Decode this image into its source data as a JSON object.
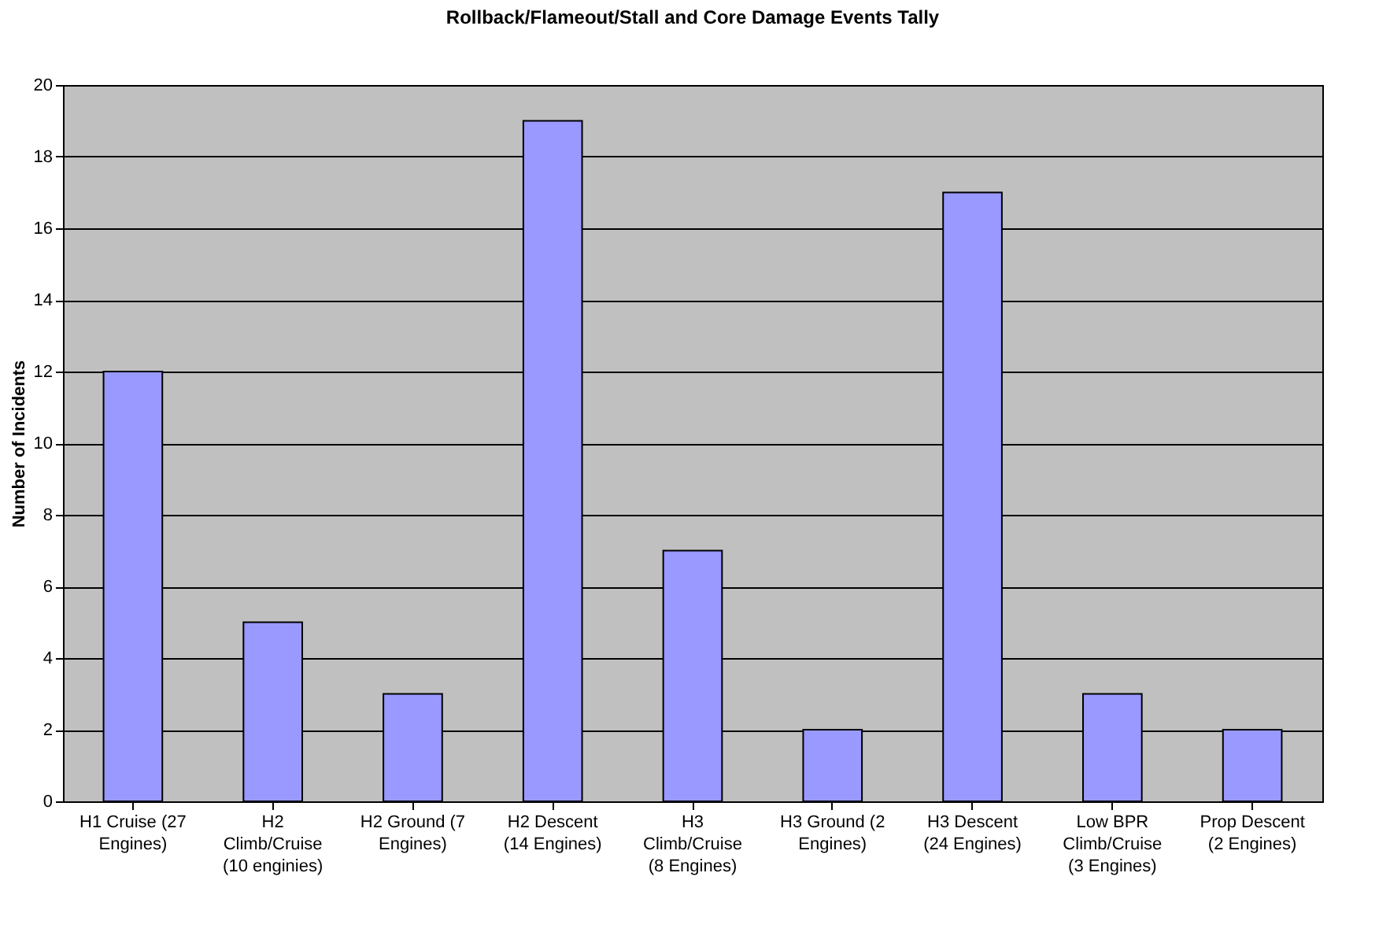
{
  "chart_data": {
    "type": "bar",
    "title": "Rollback/Flameout/Stall and Core Damage Events Tally",
    "ylabel": "Number of Incidents",
    "categories": [
      "H1 Cruise (27 Engines)",
      "H2 Climb/Cruise (10 enginies)",
      "H2 Ground (7 Engines)",
      "H2 Descent (14 Engines)",
      "H3 Climb/Cruise (8 Engines)",
      "H3 Ground (2 Engines)",
      "H3 Descent (24 Engines)",
      "Low BPR Climb/Cruise (3 Engines)",
      "Prop Descent (2 Engines)"
    ],
    "values": [
      12,
      5,
      3,
      19,
      7,
      2,
      17,
      3,
      2
    ],
    "color": "#9999ff",
    "ylim": [
      0,
      20
    ],
    "yticks": [
      0,
      2,
      4,
      6,
      8,
      10,
      12,
      14,
      16,
      18,
      20
    ],
    "grid": "y"
  }
}
